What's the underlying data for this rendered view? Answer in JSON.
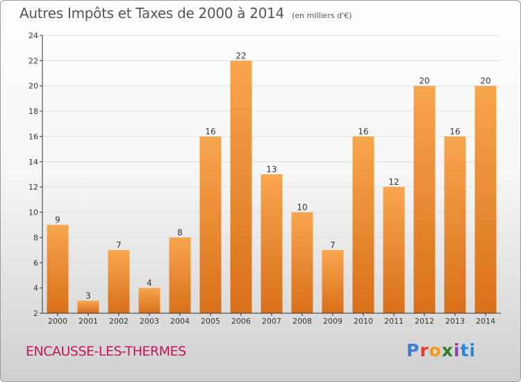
{
  "title": "Autres Impôts et Taxes de 2000 à 2014",
  "subtitle": "(en milliers d'€)",
  "commune": "ENCAUSSE-LES-THERMES",
  "logo": {
    "letters": [
      "P",
      "r",
      "o",
      "x",
      "i",
      "ti"
    ]
  },
  "colors": {
    "bar_light": "#f7a64e",
    "bar_dark": "#d9701a",
    "axis": "#333333",
    "grid": "#dddddd",
    "title": "#555555",
    "commune": "#c2185b"
  },
  "chart_data": {
    "type": "bar",
    "title": "Autres Impôts et Taxes de 2000 à 2014",
    "xlabel": "",
    "ylabel": "",
    "categories": [
      "2000",
      "2001",
      "2002",
      "2003",
      "2004",
      "2005",
      "2006",
      "2007",
      "2008",
      "2009",
      "2010",
      "2011",
      "2012",
      "2013",
      "2014"
    ],
    "values": [
      9,
      3,
      7,
      4,
      8,
      16,
      22,
      13,
      10,
      7,
      16,
      12,
      20,
      16,
      20
    ],
    "ylim": [
      2,
      24
    ],
    "yticks": [
      "2",
      "4",
      "6",
      "8",
      "10",
      "12",
      "14",
      "16",
      "18",
      "20",
      "22",
      "24"
    ],
    "grid": true
  }
}
